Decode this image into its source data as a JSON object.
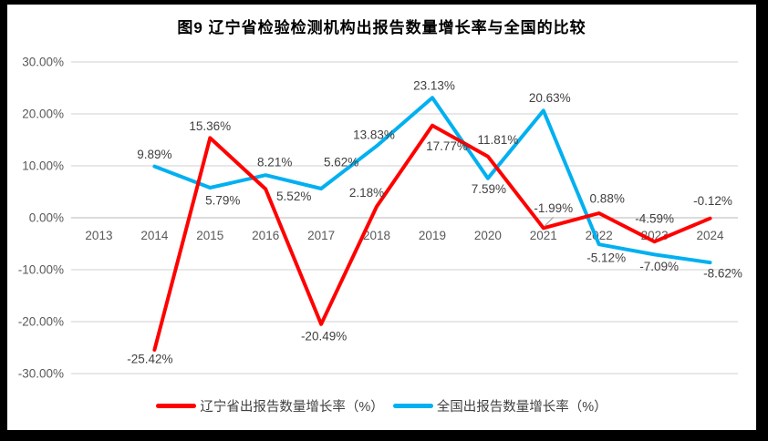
{
  "figure": {
    "frame_color": "#000000",
    "background_color": "#ffffff"
  },
  "chart_data": {
    "type": "line",
    "title": "图9  辽宁省检验检测机构出报告数量增长率与全国的比较",
    "categories": [
      "2013",
      "2014",
      "2015",
      "2016",
      "2017",
      "2018",
      "2019",
      "2020",
      "2021",
      "2022",
      "2023",
      "2024"
    ],
    "series": [
      {
        "name": "辽宁省出报告数量增长率（%）",
        "color": "#ff0000",
        "values": [
          null,
          -25.42,
          15.36,
          5.52,
          -20.49,
          2.18,
          17.77,
          11.81,
          -1.99,
          0.88,
          -4.59,
          -0.12
        ],
        "labels": [
          "",
          "-25.42%",
          "15.36%",
          "5.52%",
          "-20.49%",
          "2.18%",
          "17.77%",
          "11.81%",
          "-1.99%",
          "0.88%",
          "-4.59%",
          "-0.12%"
        ],
        "label_offsets": [
          [
            0,
            0
          ],
          [
            -5,
            10
          ],
          [
            0,
            -13
          ],
          [
            31,
            8
          ],
          [
            3,
            13
          ],
          [
            -11,
            -15
          ],
          [
            16,
            23
          ],
          [
            11,
            -18
          ],
          [
            11,
            -22
          ],
          [
            9,
            -16
          ],
          [
            0,
            -25
          ],
          [
            3,
            -19
          ]
        ]
      },
      {
        "name": "全国出报告数量增长率（%）",
        "color": "#00b0f0",
        "values": [
          null,
          9.89,
          5.79,
          8.21,
          5.62,
          13.83,
          23.13,
          7.59,
          20.63,
          -5.12,
          -7.09,
          -8.62
        ],
        "labels": [
          "",
          "9.89%",
          "5.79%",
          "8.21%",
          "5.62%",
          "13.83%",
          "23.13%",
          "7.59%",
          "20.63%",
          "-5.12%",
          "-7.09%",
          "-8.62%"
        ],
        "label_offsets": [
          [
            0,
            0
          ],
          [
            0,
            -13
          ],
          [
            14,
            14
          ],
          [
            10,
            -14
          ],
          [
            22,
            -29
          ],
          [
            -3,
            -12
          ],
          [
            2,
            -13
          ],
          [
            1,
            12
          ],
          [
            7,
            -14
          ],
          [
            8,
            15
          ],
          [
            5,
            13
          ],
          [
            14,
            12
          ]
        ]
      }
    ],
    "ylim": [
      -30,
      30
    ],
    "ytick_step": 10,
    "ytick_labels": [
      "30.00%",
      "20.00%",
      "10.00%",
      "0.00%",
      "-10.00%",
      "-20.00%",
      "-30.00%"
    ],
    "grid": true,
    "legend_position": "bottom",
    "draw_order": [
      1,
      0
    ],
    "leader_line": {
      "series_index": 0,
      "point_index": 8,
      "color": "#a6a6a6"
    },
    "gridline_color": "#d9d9d9",
    "zero_line_color": "#c6c6c6",
    "axis_label_color": "#595959",
    "data_label_color": "#404040"
  }
}
